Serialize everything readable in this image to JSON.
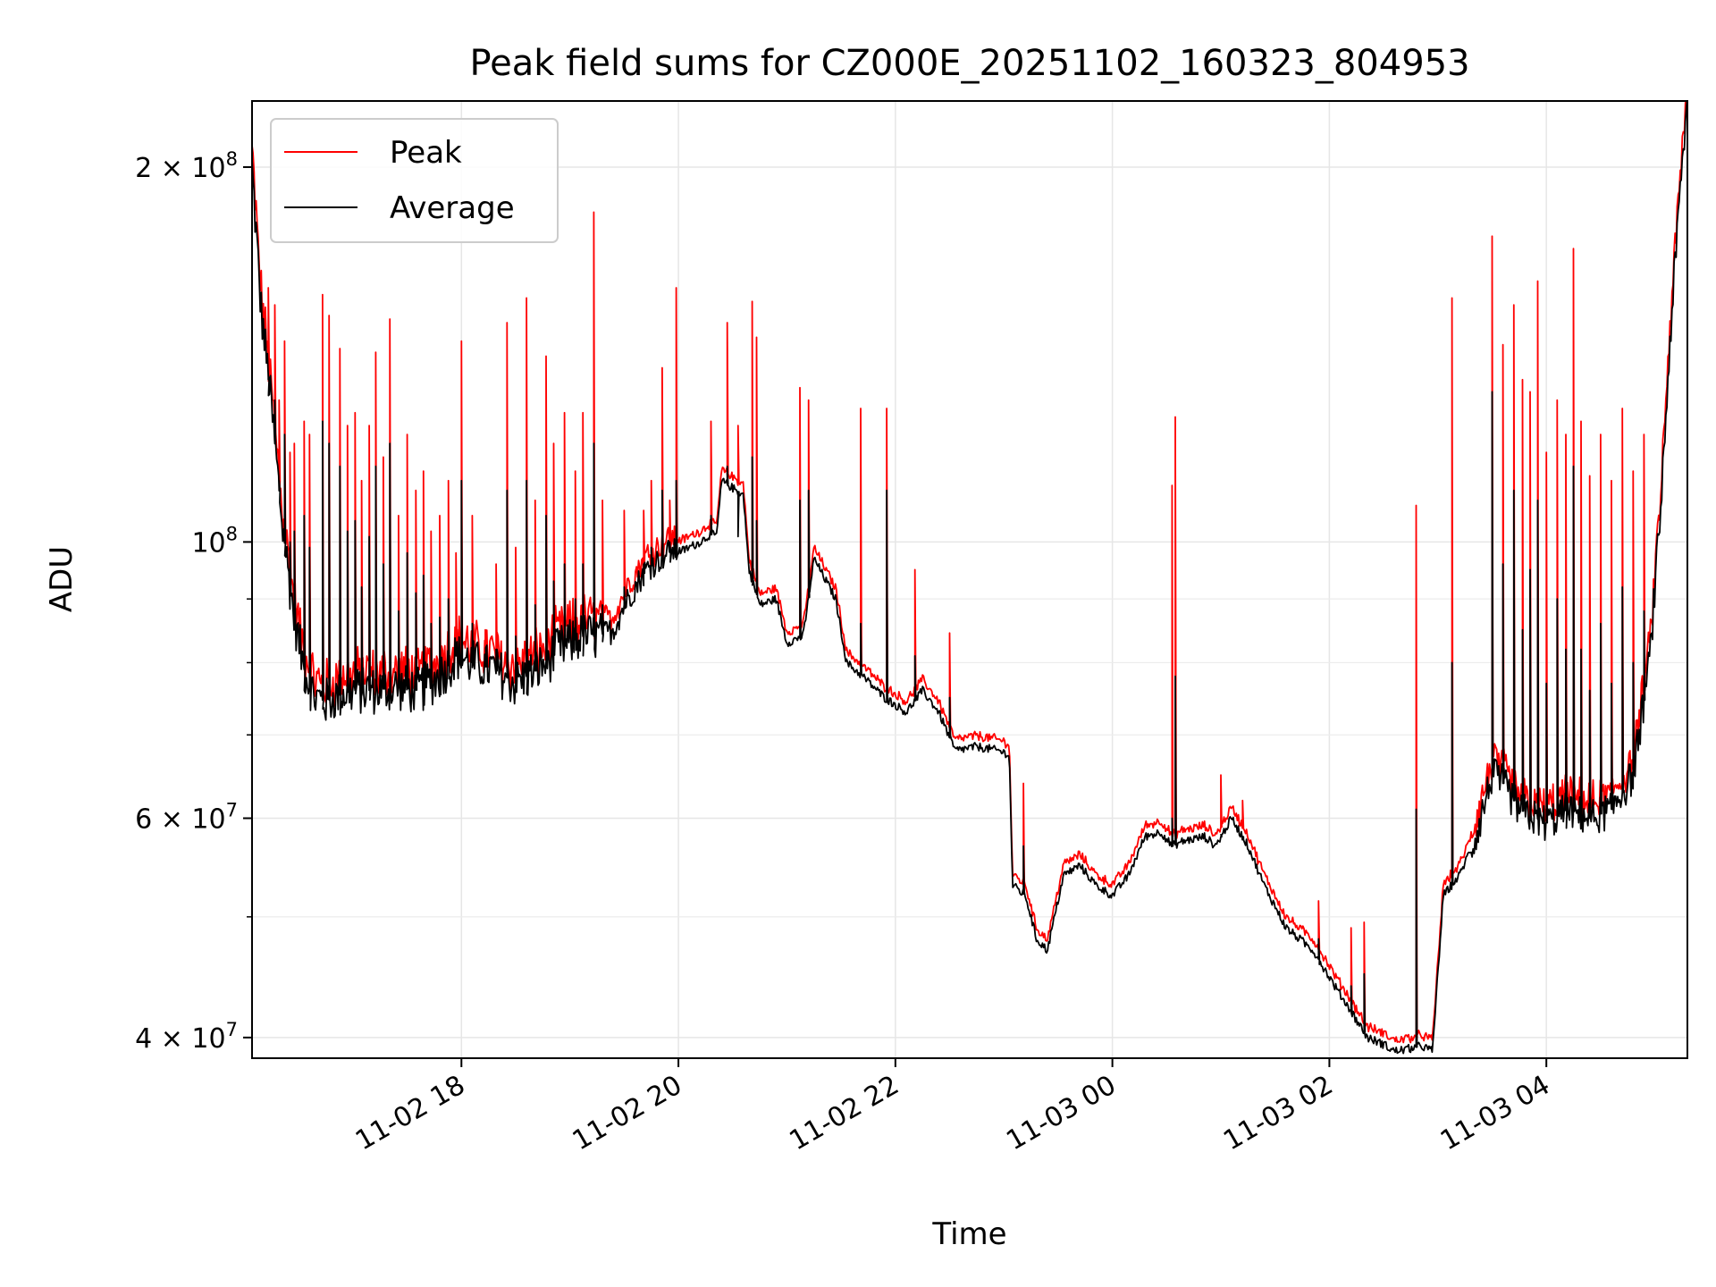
{
  "chart_data": {
    "type": "line",
    "title": "Peak field sums for CZ000E_20251102_160323_804953",
    "xlabel": "Time",
    "ylabel": "ADU",
    "yscale": "log",
    "xlim": [
      16.07,
      29.3
    ],
    "ylim": [
      38500000,
      226000000
    ],
    "grid": true,
    "x_ticks": [
      {
        "value": 18,
        "label": "11-02 18"
      },
      {
        "value": 20,
        "label": "11-02 20"
      },
      {
        "value": 22,
        "label": "11-02 22"
      },
      {
        "value": 24,
        "label": "11-03 00"
      },
      {
        "value": 26,
        "label": "11-03 02"
      },
      {
        "value": 28,
        "label": "11-03 04"
      }
    ],
    "y_major_ticks": [
      {
        "value": 40000000,
        "base": "4 × 10",
        "exp": "7"
      },
      {
        "value": 60000000,
        "base": "6 × 10",
        "exp": "7"
      },
      {
        "value": 100000000,
        "base": "10",
        "exp": "8"
      },
      {
        "value": 200000000,
        "base": "2 × 10",
        "exp": "8"
      }
    ],
    "y_minor_ticks": [
      50000000,
      70000000,
      80000000,
      90000000
    ],
    "legend": {
      "position": "top-left",
      "entries": [
        {
          "label": "Peak",
          "color": "#ff0000"
        },
        {
          "label": "Average",
          "color": "#000000"
        }
      ]
    },
    "baseline_average": {
      "x": [
        16.07,
        16.15,
        16.25,
        16.35,
        16.45,
        16.55,
        16.65,
        16.75,
        16.9,
        17.0,
        17.2,
        17.4,
        17.6,
        17.8,
        17.95,
        18.1,
        18.3,
        18.5,
        18.7,
        18.9,
        19.1,
        19.25,
        19.4,
        19.5,
        19.7,
        19.9,
        20.05,
        20.2,
        20.3,
        20.35,
        20.4,
        20.6,
        20.65,
        20.75,
        20.9,
        21.0,
        21.15,
        21.25,
        21.45,
        21.55,
        21.7,
        21.9,
        22.1,
        22.25,
        22.4,
        22.55,
        22.75,
        22.95,
        23.05,
        23.08,
        23.2,
        23.3,
        23.4,
        23.55,
        23.7,
        23.85,
        24.0,
        24.15,
        24.3,
        24.45,
        24.55,
        24.65,
        24.85,
        24.95,
        25.1,
        25.25,
        25.4,
        25.6,
        25.85,
        26.05,
        26.2,
        26.35,
        26.5,
        26.6,
        26.75,
        26.85,
        26.95,
        27.05,
        27.2,
        27.35,
        27.5,
        27.6,
        27.75,
        27.9,
        28.0,
        28.2,
        28.4,
        28.6,
        28.8,
        28.95,
        29.05,
        29.15,
        29.25,
        29.3
      ],
      "values": [
        200000000,
        155000000,
        128000000,
        103000000,
        88000000,
        79000000,
        75000000,
        74500000,
        75500000,
        76000000,
        76000000,
        76500000,
        76000000,
        78000000,
        81000000,
        80000000,
        79000000,
        77000000,
        79000000,
        82000000,
        84000000,
        84000000,
        85000000,
        89000000,
        95000000,
        98000000,
        98500000,
        100000000,
        101500000,
        101000000,
        112000000,
        109000000,
        95000000,
        89000000,
        90000000,
        83000000,
        84000000,
        97000000,
        90000000,
        80000000,
        78000000,
        75000000,
        73000000,
        76000000,
        73000000,
        68000000,
        68500000,
        68000000,
        67500000,
        53000000,
        52000000,
        48000000,
        47000000,
        54000000,
        55000000,
        53000000,
        52000000,
        54000000,
        58000000,
        58500000,
        57000000,
        57500000,
        58000000,
        57000000,
        60000000,
        57000000,
        53000000,
        49000000,
        47000000,
        44000000,
        42000000,
        40000000,
        39500000,
        39000000,
        39200000,
        39400000,
        39000000,
        52000000,
        54000000,
        58000000,
        65000000,
        64000000,
        61000000,
        60000000,
        59500000,
        61000000,
        60000000,
        61000000,
        65000000,
        80000000,
        105000000,
        150000000,
        200000000,
        226000000
      ]
    },
    "peak_offset_ratio": 1.018,
    "spikes": {
      "x": [
        16.22,
        16.28,
        16.32,
        16.37,
        16.42,
        16.46,
        16.55,
        16.6,
        16.72,
        16.78,
        16.88,
        16.95,
        17.02,
        17.08,
        17.15,
        17.21,
        17.28,
        17.34,
        17.42,
        17.5,
        17.58,
        17.65,
        17.72,
        17.8,
        17.88,
        17.95,
        18.0,
        18.1,
        18.22,
        18.32,
        18.42,
        18.5,
        18.6,
        18.68,
        18.78,
        18.85,
        18.95,
        19.05,
        19.12,
        19.22,
        19.3,
        19.5,
        19.68,
        19.75,
        19.85,
        19.92,
        19.98,
        20.3,
        20.45,
        20.55,
        20.68,
        20.72,
        21.12,
        21.2,
        21.68,
        21.92,
        22.18,
        22.5,
        23.18,
        24.55,
        24.58,
        25.0,
        25.2,
        25.9,
        26.2,
        26.32,
        26.8,
        27.13,
        27.5,
        27.6,
        27.7,
        27.78,
        27.85,
        27.92,
        28.0,
        28.1,
        28.18,
        28.25,
        28.32,
        28.4,
        28.5,
        28.6,
        28.7,
        28.8,
        28.9
      ],
      "peak": [
        160000000,
        155000000,
        130000000,
        145000000,
        118000000,
        120000000,
        125000000,
        122000000,
        158000000,
        152000000,
        143000000,
        124000000,
        127000000,
        112000000,
        124000000,
        142000000,
        117000000,
        151000000,
        105000000,
        122000000,
        110000000,
        114000000,
        102000000,
        105000000,
        112000000,
        98000000,
        145000000,
        105000000,
        85000000,
        96000000,
        150000000,
        99000000,
        157000000,
        108000000,
        141000000,
        120000000,
        127000000,
        114000000,
        127000000,
        184000000,
        108000000,
        106000000,
        106000000,
        112000000,
        138000000,
        108000000,
        160000000,
        125000000,
        150000000,
        124000000,
        156000000,
        146000000,
        133000000,
        130000000,
        128000000,
        128000000,
        95000000,
        84500000,
        64000000,
        111000000,
        126000000,
        65000000,
        62000000,
        51500000,
        49000000,
        49500000,
        107000000,
        157000000,
        176000000,
        144000000,
        155000000,
        135000000,
        132000000,
        162000000,
        118000000,
        130000000,
        122000000,
        172000000,
        125000000,
        113000000,
        122000000,
        112000000,
        128000000,
        114000000,
        122000000
      ],
      "average": [
        135000000,
        130000000,
        112000000,
        122000000,
        100000000,
        102000000,
        105000000,
        99000000,
        125000000,
        120000000,
        115000000,
        102000000,
        104000000,
        92000000,
        101000000,
        115000000,
        96000000,
        120000000,
        88000000,
        98000000,
        91000000,
        94000000,
        86000000,
        87000000,
        90000000,
        83000000,
        112000000,
        86000000,
        80000000,
        82000000,
        110000000,
        84000000,
        112000000,
        89000000,
        105000000,
        93000000,
        96000000,
        90000000,
        96000000,
        120000000,
        89000000,
        92000000,
        96000000,
        99000000,
        110000000,
        100000000,
        112000000,
        105000000,
        115000000,
        101000000,
        117000000,
        104000000,
        108000000,
        110000000,
        86000000,
        110000000,
        81000000,
        75000000,
        57000000,
        60000000,
        78000000,
        58000000,
        58000000,
        48000000,
        44000000,
        45000000,
        61000000,
        80000000,
        132000000,
        96000000,
        110000000,
        85000000,
        95000000,
        108000000,
        77000000,
        90000000,
        82000000,
        115000000,
        82000000,
        76000000,
        86000000,
        77000000,
        92000000,
        80000000,
        88000000
      ]
    }
  }
}
